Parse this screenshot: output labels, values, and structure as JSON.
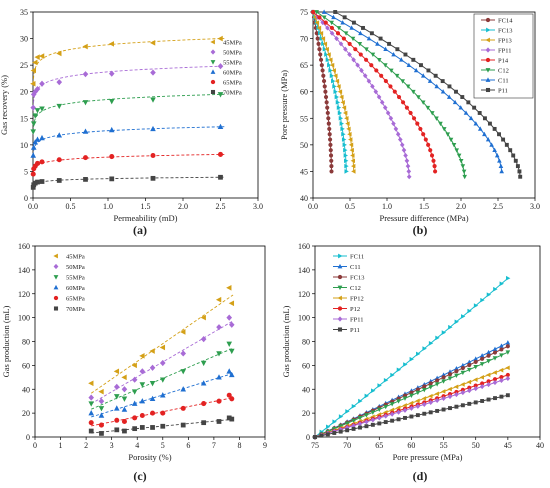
{
  "chart_data": [
    {
      "panel_label": "(a)",
      "type": "scatter",
      "xlabel": "Permeability (mD)",
      "ylabel": "Gas recovery (%)",
      "xlim": [
        0,
        3.0
      ],
      "ylim": [
        0,
        35
      ],
      "xticks": [
        0.0,
        0.5,
        1.0,
        1.5,
        2.0,
        2.5,
        3.0
      ],
      "yticks": [
        0,
        5,
        10,
        15,
        20,
        25,
        30,
        35
      ],
      "xtick_labels": [
        "0.0",
        "0.5",
        "1.0",
        "1.5",
        "2.0",
        "2.5",
        "3.0"
      ],
      "ytick_labels": [
        "0",
        "5",
        "10",
        "15",
        "20",
        "25",
        "30",
        "35"
      ],
      "legend_position": "right",
      "fit": "logarithmic dashed",
      "series": [
        {
          "name": "45MPa",
          "color": "#d4a017",
          "marker": "tri-left",
          "x": [
            0.003,
            0.01,
            0.03,
            0.06,
            0.12,
            0.35,
            0.7,
            1.05,
            1.6,
            2.5
          ],
          "y": [
            21.5,
            24.0,
            25.5,
            26.5,
            26.7,
            27.2,
            28.5,
            29.0,
            29.2,
            30.0
          ]
        },
        {
          "name": "50MPa",
          "color": "#a86bd6",
          "marker": "diamond",
          "x": [
            0.003,
            0.01,
            0.03,
            0.06,
            0.12,
            0.35,
            0.7,
            1.05,
            1.6,
            2.5
          ],
          "y": [
            17.0,
            19.5,
            20.0,
            20.5,
            21.5,
            21.8,
            23.3,
            23.4,
            23.6,
            24.8
          ]
        },
        {
          "name": "55MPa",
          "color": "#2e9e4f",
          "marker": "tri-down",
          "x": [
            0.003,
            0.01,
            0.03,
            0.06,
            0.12,
            0.35,
            0.7,
            1.05,
            1.6,
            2.5
          ],
          "y": [
            12.5,
            14.0,
            15.5,
            16.5,
            16.8,
            17.3,
            18.0,
            18.2,
            18.5,
            19.5
          ]
        },
        {
          "name": "60MPa",
          "color": "#1f6fd1",
          "marker": "tri-up",
          "x": [
            0.003,
            0.01,
            0.03,
            0.06,
            0.12,
            0.35,
            0.7,
            1.05,
            1.6,
            2.5
          ],
          "y": [
            8.0,
            9.5,
            10.5,
            11.0,
            11.3,
            11.8,
            12.5,
            12.8,
            13.0,
            13.4
          ]
        },
        {
          "name": "65MPa",
          "color": "#e32222",
          "marker": "circle",
          "x": [
            0.003,
            0.01,
            0.03,
            0.06,
            0.12,
            0.35,
            0.7,
            1.05,
            1.6,
            2.5
          ],
          "y": [
            4.5,
            5.5,
            6.0,
            6.5,
            6.8,
            7.2,
            7.6,
            7.8,
            8.0,
            8.2
          ]
        },
        {
          "name": "70MPa",
          "color": "#444444",
          "marker": "square",
          "x": [
            0.003,
            0.01,
            0.03,
            0.06,
            0.12,
            0.35,
            0.7,
            1.05,
            1.6,
            2.5
          ],
          "y": [
            2.0,
            2.5,
            2.8,
            3.0,
            3.1,
            3.3,
            3.5,
            3.6,
            3.7,
            3.9
          ]
        }
      ]
    },
    {
      "panel_label": "(b)",
      "type": "line",
      "xlabel": "Pressure difference (MPa)",
      "ylabel": "Pore pressure (MPa)",
      "xlim": [
        0.0,
        3.0
      ],
      "ylim": [
        40,
        75
      ],
      "xticks": [
        0.0,
        0.5,
        1.0,
        1.5,
        2.0,
        2.5,
        3.0
      ],
      "yticks": [
        40,
        45,
        50,
        55,
        60,
        65,
        70,
        75
      ],
      "xtick_labels": [
        "0.0",
        "0.5",
        "1.0",
        "1.5",
        "2.0",
        "2.5",
        "3.0"
      ],
      "ytick_labels": [
        "40",
        "45",
        "50",
        "55",
        "60",
        "65",
        "70",
        "75"
      ],
      "legend_position": "top-right",
      "y_values": [
        75,
        74,
        73,
        72,
        71,
        70,
        69,
        68,
        67,
        66,
        65,
        64,
        63,
        62,
        61,
        60,
        59,
        58,
        57,
        56,
        55,
        54,
        53,
        52,
        51,
        50,
        49,
        48,
        47,
        46,
        45
      ],
      "series": [
        {
          "name": "FC14",
          "color": "#8b3a3a",
          "marker": "circle",
          "start_x": 0.0,
          "end_x": 0.25,
          "max_pressure": 75,
          "min_pressure": 45
        },
        {
          "name": "FC13",
          "color": "#17becf",
          "marker": "tri-right",
          "start_x": 0.0,
          "end_x": 0.45,
          "max_pressure": 75,
          "min_pressure": 45
        },
        {
          "name": "FP13",
          "color": "#d4a017",
          "marker": "tri-left",
          "start_x": 0.0,
          "end_x": 0.55,
          "max_pressure": 75,
          "min_pressure": 45
        },
        {
          "name": "FP11",
          "color": "#a86bd6",
          "marker": "diamond",
          "start_x": 0.0,
          "end_x": 1.3,
          "max_pressure": 75,
          "min_pressure": 44
        },
        {
          "name": "P14",
          "color": "#e32222",
          "marker": "circle",
          "start_x": 0.0,
          "end_x": 1.65,
          "max_pressure": 75,
          "min_pressure": 45
        },
        {
          "name": "C12",
          "color": "#2e9e4f",
          "marker": "tri-down",
          "start_x": 0.05,
          "end_x": 2.05,
          "max_pressure": 75,
          "min_pressure": 44
        },
        {
          "name": "C11",
          "color": "#1f6fd1",
          "marker": "tri-up",
          "start_x": 0.15,
          "end_x": 2.55,
          "max_pressure": 75,
          "min_pressure": 45
        },
        {
          "name": "P11",
          "color": "#444444",
          "marker": "square",
          "start_x": 0.3,
          "end_x": 2.8,
          "max_pressure": 75,
          "min_pressure": 44
        }
      ]
    },
    {
      "panel_label": "(c)",
      "type": "scatter",
      "xlabel": "Porosity (%)",
      "ylabel": "Gas production (mL)",
      "xlim": [
        0,
        9
      ],
      "ylim": [
        0,
        160
      ],
      "xticks": [
        0,
        1,
        2,
        3,
        4,
        5,
        6,
        7,
        8,
        9
      ],
      "yticks": [
        0,
        20,
        40,
        60,
        80,
        100,
        120,
        140,
        160
      ],
      "xtick_labels": [
        "0",
        "1",
        "2",
        "3",
        "4",
        "5",
        "6",
        "7",
        "8",
        "9"
      ],
      "ytick_labels": [
        "0",
        "20",
        "40",
        "60",
        "80",
        "100",
        "120",
        "140",
        "160"
      ],
      "legend_position": "top-left",
      "fit": "linear dashed",
      "series": [
        {
          "name": "45MPa",
          "color": "#d4a017",
          "marker": "tri-left",
          "x": [
            2.2,
            2.6,
            3.2,
            3.5,
            3.9,
            4.2,
            4.6,
            5.0,
            5.8,
            6.6,
            7.2,
            7.6,
            7.7
          ],
          "y": [
            45,
            38,
            55,
            50,
            60,
            68,
            72,
            75,
            88,
            100,
            115,
            125,
            112
          ]
        },
        {
          "name": "50MPa",
          "color": "#a86bd6",
          "marker": "diamond",
          "x": [
            2.2,
            2.6,
            3.2,
            3.5,
            3.9,
            4.2,
            4.6,
            5.0,
            5.8,
            6.6,
            7.2,
            7.6,
            7.7
          ],
          "y": [
            33,
            30,
            42,
            40,
            48,
            55,
            58,
            62,
            70,
            82,
            92,
            100,
            94
          ]
        },
        {
          "name": "55MPa",
          "color": "#2e9e4f",
          "marker": "tri-down",
          "x": [
            2.2,
            2.6,
            3.2,
            3.5,
            3.9,
            4.2,
            4.6,
            5.0,
            5.8,
            6.6,
            7.2,
            7.6,
            7.7
          ],
          "y": [
            28,
            24,
            34,
            32,
            38,
            44,
            45,
            48,
            55,
            62,
            70,
            78,
            72
          ]
        },
        {
          "name": "60MPa",
          "color": "#1f6fd1",
          "marker": "tri-up",
          "x": [
            2.2,
            2.6,
            3.2,
            3.5,
            3.9,
            4.2,
            4.6,
            5.0,
            5.8,
            6.6,
            7.2,
            7.6,
            7.7
          ],
          "y": [
            20,
            18,
            24,
            23,
            28,
            30,
            32,
            35,
            40,
            45,
            50,
            55,
            52
          ]
        },
        {
          "name": "65MPa",
          "color": "#e32222",
          "marker": "circle",
          "x": [
            2.2,
            2.6,
            3.2,
            3.5,
            3.9,
            4.2,
            4.6,
            5.0,
            5.8,
            6.6,
            7.2,
            7.6,
            7.7
          ],
          "y": [
            12,
            10,
            14,
            13,
            16,
            18,
            20,
            20,
            24,
            28,
            30,
            35,
            32
          ]
        },
        {
          "name": "70MPa",
          "color": "#444444",
          "marker": "square",
          "x": [
            2.2,
            2.6,
            3.2,
            3.5,
            3.9,
            4.2,
            4.6,
            5.0,
            5.8,
            6.6,
            7.2,
            7.6,
            7.7
          ],
          "y": [
            5,
            3,
            6,
            5,
            7,
            8,
            8,
            9,
            10,
            12,
            13,
            16,
            15
          ]
        }
      ]
    },
    {
      "panel_label": "(d)",
      "type": "line",
      "xlabel": "Pore pressure (MPa)",
      "ylabel": "Gas production (mL)",
      "xlim": [
        75,
        40
      ],
      "ylim": [
        0,
        160
      ],
      "xticks": [
        75,
        70,
        65,
        60,
        55,
        50,
        45,
        40
      ],
      "yticks": [
        0,
        20,
        40,
        60,
        80,
        100,
        120,
        140,
        160
      ],
      "xtick_labels": [
        "75",
        "70",
        "65",
        "60",
        "55",
        "50",
        "45",
        "40"
      ],
      "ytick_labels": [
        "0",
        "20",
        "40",
        "60",
        "80",
        "100",
        "120",
        "140",
        "160"
      ],
      "legend_position": "top-left",
      "x_values": [
        75,
        74,
        73,
        72,
        71,
        70,
        69,
        68,
        67,
        66,
        65,
        64,
        63,
        62,
        61,
        60,
        59,
        58,
        57,
        56,
        55,
        54,
        53,
        52,
        51,
        50,
        49,
        48,
        47,
        46,
        45
      ],
      "series": [
        {
          "name": "FC11",
          "color": "#17becf",
          "marker": "tri-right",
          "end_value": 133
        },
        {
          "name": "C11",
          "color": "#1f6fd1",
          "marker": "tri-up",
          "end_value": 79
        },
        {
          "name": "FC13",
          "color": "#8b3a3a",
          "marker": "circle",
          "end_value": 76
        },
        {
          "name": "C12",
          "color": "#2e9e4f",
          "marker": "tri-down",
          "end_value": 71
        },
        {
          "name": "FP12",
          "color": "#d4a017",
          "marker": "tri-left",
          "end_value": 58
        },
        {
          "name": "P12",
          "color": "#e32222",
          "marker": "circle",
          "end_value": 52
        },
        {
          "name": "FP11",
          "color": "#a86bd6",
          "marker": "diamond",
          "end_value": 49
        },
        {
          "name": "P11",
          "color": "#444444",
          "marker": "square",
          "end_value": 35
        }
      ]
    }
  ]
}
